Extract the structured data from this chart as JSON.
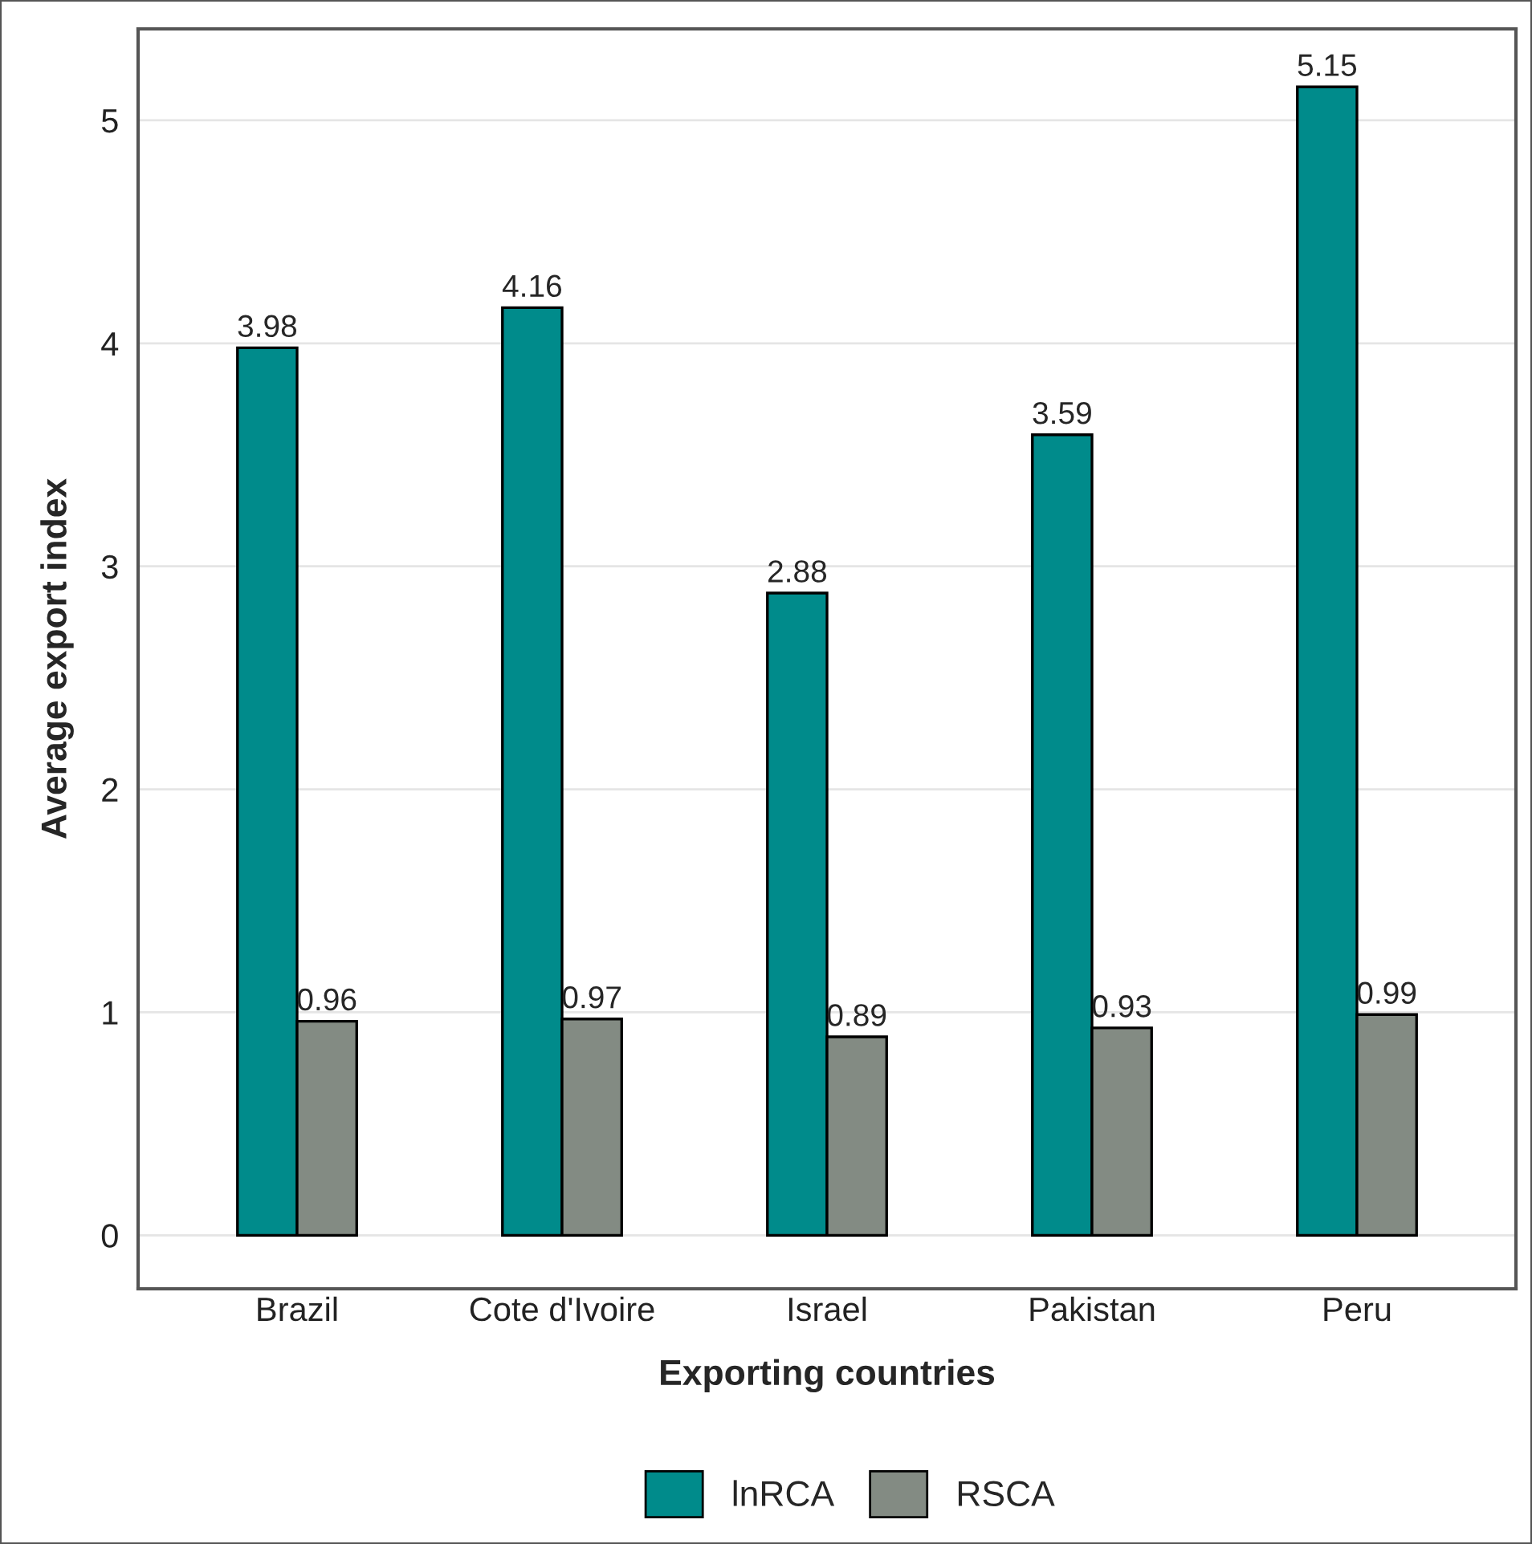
{
  "chart_data": {
    "type": "bar",
    "xlabel": "Exporting countries",
    "ylabel": "Average export index",
    "categories": [
      "Brazil",
      "Cote d'Ivoire",
      "Israel",
      "Pakistan",
      "Peru"
    ],
    "series": [
      {
        "name": "lnRCA",
        "color": "#008b8b",
        "values": [
          3.98,
          4.16,
          2.88,
          3.59,
          5.15
        ]
      },
      {
        "name": "RSCA",
        "color": "#838b83",
        "values": [
          0.96,
          0.97,
          0.89,
          0.93,
          0.99
        ]
      }
    ],
    "ylim": [
      -0.24,
      5.41
    ],
    "yticks": [
      0,
      1,
      2,
      3,
      4,
      5
    ],
    "grid": "y",
    "legend": "bottom",
    "data_labels": true
  }
}
